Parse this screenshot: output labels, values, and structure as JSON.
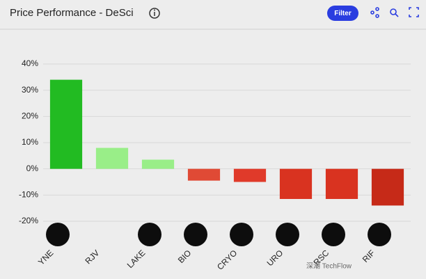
{
  "chart_data": {
    "type": "bar",
    "title": "Price Performance - DeSci",
    "button": "Filter",
    "categories": [
      "YNE",
      "RJV",
      "LAKE",
      "BIO",
      "CRYO",
      "URO",
      "RSC",
      "RIF"
    ],
    "values": [
      34,
      8,
      3.5,
      -4.5,
      -5,
      -11.5,
      -11.5,
      -14
    ],
    "colors": [
      "#22bb22",
      "#99ee88",
      "#99ee88",
      "#e04a35",
      "#e03a2a",
      "#d93320",
      "#d93320",
      "#c62a18"
    ],
    "ylim": [
      -20,
      40
    ],
    "yticks": [
      {
        "value": -20,
        "label": "-20%"
      },
      {
        "value": -10,
        "label": "-10%"
      },
      {
        "value": 0,
        "label": "0%"
      },
      {
        "value": 10,
        "label": "10%"
      },
      {
        "value": 20,
        "label": "20%"
      },
      {
        "value": 30,
        "label": "30%"
      },
      {
        "value": 40,
        "label": "40%"
      }
    ],
    "grid": true,
    "watermark": "深潮 TechFlow"
  }
}
